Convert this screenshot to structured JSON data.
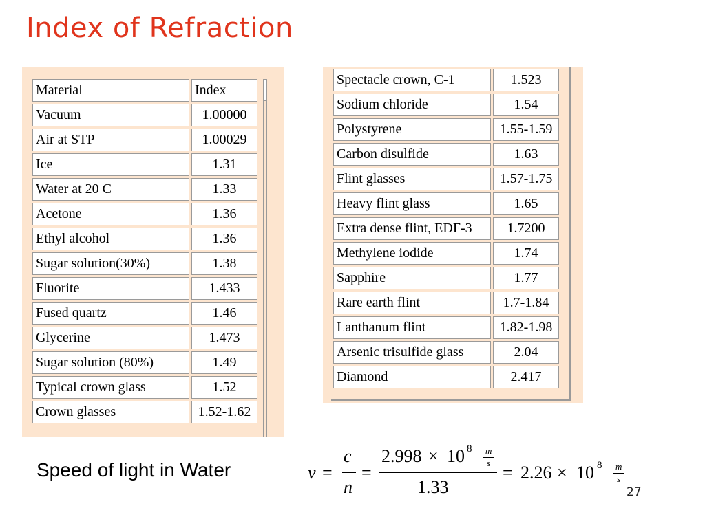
{
  "title": "Index of Refraction",
  "left_table": {
    "headers": [
      "Material",
      "Index"
    ],
    "rows": [
      [
        "Vacuum",
        "1.00000"
      ],
      [
        "Air at STP",
        "1.00029"
      ],
      [
        "Ice",
        "1.31"
      ],
      [
        "Water at 20 C",
        "1.33"
      ],
      [
        "Acetone",
        "1.36"
      ],
      [
        "Ethyl alcohol",
        "1.36"
      ],
      [
        "Sugar solution(30%)",
        "1.38"
      ],
      [
        "Fluorite",
        "1.433"
      ],
      [
        "Fused quartz",
        "1.46"
      ],
      [
        "Glycerine",
        "1.473"
      ],
      [
        "Sugar solution (80%)",
        "1.49"
      ],
      [
        "Typical crown glass",
        "1.52"
      ],
      [
        "Crown glasses",
        "1.52-1.62"
      ]
    ]
  },
  "right_table": {
    "rows": [
      [
        "Spectacle crown, C-1",
        "1.523"
      ],
      [
        "Sodium chloride",
        "1.54"
      ],
      [
        "Polystyrene",
        "1.55-1.59"
      ],
      [
        "Carbon disulfide",
        "1.63"
      ],
      [
        "Flint glasses",
        "1.57-1.75"
      ],
      [
        "Heavy flint glass",
        "1.65"
      ],
      [
        "Extra dense flint, EDF-3",
        "1.7200"
      ],
      [
        "Methylene iodide",
        "1.74"
      ],
      [
        "Sapphire",
        "1.77"
      ],
      [
        "Rare earth flint",
        "1.7-1.84"
      ],
      [
        "Lanthanum flint",
        "1.82-1.98"
      ],
      [
        "Arsenic trisulfide glass",
        "2.04"
      ],
      [
        "Diamond",
        "2.417"
      ]
    ]
  },
  "caption": "Speed of light in Water",
  "equation": {
    "v": "v",
    "eq": "=",
    "c": "c",
    "n": "n",
    "num_mantissa": "2.998",
    "times": "×",
    "ten": "10",
    "exp": "8",
    "denominator": "1.33",
    "result_mantissa": "2.26",
    "unit_num": "m",
    "unit_den": "s"
  },
  "page_number": "27"
}
